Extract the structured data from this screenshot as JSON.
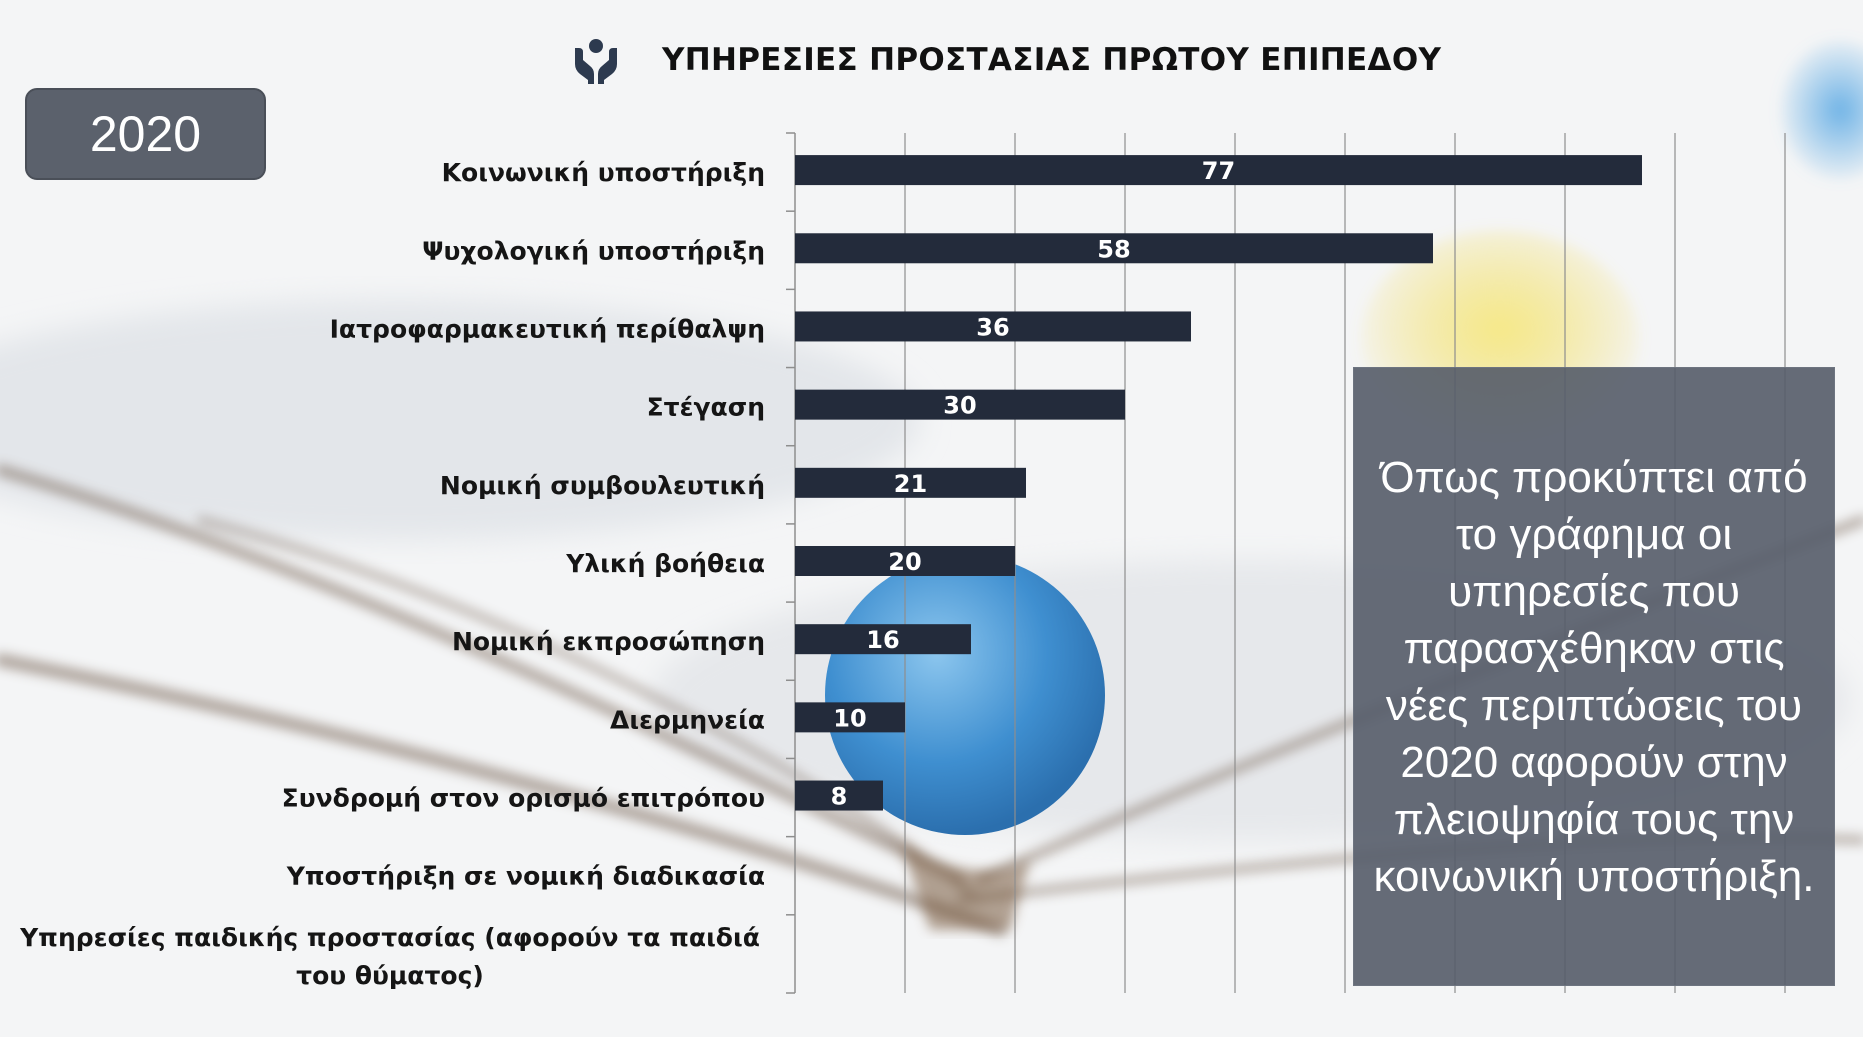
{
  "title": "ΥΠΗΡΕΣΙΕΣ ΠΡΟΣΤΑΣΙΑΣ ΠΡΩΤΟΥ ΕΠΙΠΕΔΟΥ",
  "title_icon": "hands-protect-icon",
  "year_label": "2020",
  "note_text": "Όπως προκύπτει από το γράφημα οι υπηρεσίες που παρασχέθηκαν στις νέες περιπτώσεις του 2020 αφορούν στην πλειοψηφία τους την κοινωνική υποστήριξη.",
  "colors": {
    "bar": "#232b3b",
    "note_box": "#555c69",
    "year_box": "#5b616c"
  },
  "chart_data": {
    "type": "bar",
    "orientation": "horizontal",
    "categories": [
      "Κοινωνική υποστήριξη",
      "Ψυχολογική υποστήριξη",
      "Ιατροφαρμακευτική περίθαλψη",
      "Στέγαση",
      "Νομική συμβουλευτική",
      "Υλική βοήθεια",
      "Νομική εκπροσώπηση",
      "Διερμηνεία",
      "Συνδρομή στον ορισμό επιτρόπου",
      "Υποστήριξη σε νομική διαδικασία",
      "Υπηρεσίες παιδικής προστασίας (αφορούν τα παιδιά του θύματος)"
    ],
    "category_lines": [
      [
        "Κοινωνική υποστήριξη"
      ],
      [
        "Ψυχολογική υποστήριξη"
      ],
      [
        "Ιατροφαρμακευτική περίθαλψη"
      ],
      [
        "Στέγαση"
      ],
      [
        "Νομική συμβουλευτική"
      ],
      [
        "Υλική βοήθεια"
      ],
      [
        "Νομική εκπροσώπηση"
      ],
      [
        "Διερμηνεία"
      ],
      [
        "Συνδρομή στον ορισμό επιτρόπου"
      ],
      [
        "Υποστήριξη σε νομική διαδικασία"
      ],
      [
        "Υπηρεσίες παιδικής προστασίας (αφορούν τα παιδιά",
        "του θύματος)"
      ]
    ],
    "values": [
      77,
      58,
      36,
      30,
      21,
      20,
      16,
      10,
      8,
      null,
      null
    ],
    "data_labels": [
      "77",
      "58",
      "36",
      "30",
      "21",
      "20",
      "16",
      "10",
      "8",
      "",
      ""
    ],
    "xlim": [
      0,
      100
    ],
    "grid": true,
    "legend": "none"
  }
}
